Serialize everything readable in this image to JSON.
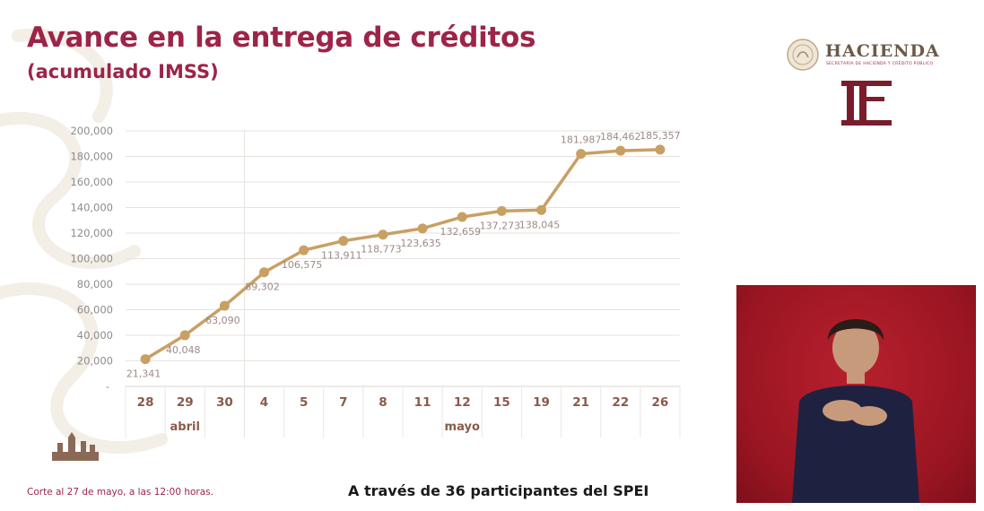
{
  "header": {
    "title": "Avance en la entrega de créditos",
    "subtitle": "(acumulado IMSS)"
  },
  "logos": {
    "hacienda": "HACIENDA",
    "hacienda_sub": "SECRETARÍA DE HACIENDA Y CRÉDITO PÚBLICO",
    "tf": "TF"
  },
  "chart_data": {
    "type": "line",
    "categories": [
      "28",
      "29",
      "30",
      "4",
      "5",
      "7",
      "8",
      "11",
      "12",
      "15",
      "19",
      "21",
      "22",
      "26"
    ],
    "values": [
      21341,
      40048,
      63090,
      89302,
      106575,
      113911,
      118773,
      123635,
      132659,
      137273,
      138045,
      181987,
      184462,
      185357
    ],
    "data_labels": [
      "21,341",
      "40,048",
      "63,090",
      "89,302",
      "106,575",
      "113,911",
      "118,773",
      "123,635",
      "132,659",
      "137,273",
      "138,045",
      "181,987",
      "184,462",
      "185,357"
    ],
    "groups": [
      {
        "label": "abril",
        "from": 0,
        "to": 2
      },
      {
        "label": "mayo",
        "from": 3,
        "to": 13
      }
    ],
    "ylim": [
      0,
      200000
    ],
    "yticks": [
      "20,000",
      "40,000",
      "60,000",
      "80,000",
      "100,000",
      "120,000",
      "140,000",
      "160,000",
      "180,000",
      "200,000"
    ],
    "ytick_values": [
      20000,
      40000,
      60000,
      80000,
      100000,
      120000,
      140000,
      160000,
      180000,
      200000
    ],
    "y_zero_label": "-",
    "grid": true,
    "line_color": "#c8a064"
  },
  "footer": {
    "note": "Corte al 27 de mayo, a las 12:00 horas.",
    "main": "A través de 36 participantes del SPEI"
  },
  "colors": {
    "brand": "#9d2449",
    "gold": "#c8a064"
  }
}
